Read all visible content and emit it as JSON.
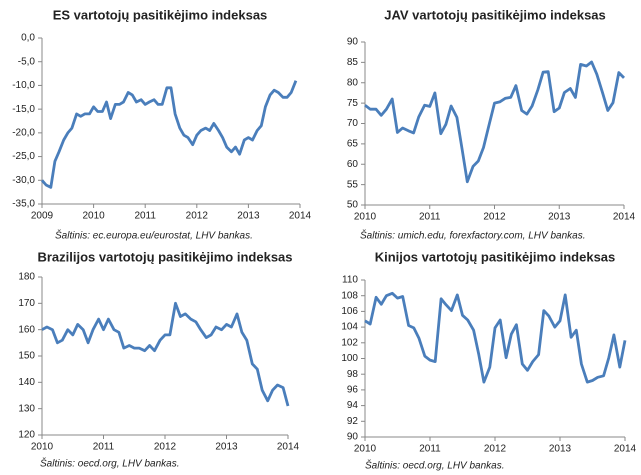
{
  "chart_data": [
    {
      "type": "line",
      "title": "ES vartotojų pasitikėjimo indeksas",
      "source": "Šaltinis: ec.europa.eu/eurostat, LHV bankas.",
      "color": "#4a7ebb",
      "xlim": [
        2009,
        2014
      ],
      "xticks": [
        2009,
        2010,
        2011,
        2012,
        2013,
        2014
      ],
      "ylim": [
        -35,
        0
      ],
      "yticks": [
        {
          "value": 0,
          "label": "0,0"
        },
        {
          "value": -5,
          "label": "-5,0"
        },
        {
          "value": -10,
          "label": "-10,0"
        },
        {
          "value": -15,
          "label": "-15,0"
        },
        {
          "value": -20,
          "label": "-20,0"
        },
        {
          "value": -25,
          "label": "-25,0"
        },
        {
          "value": -30,
          "label": "-30,0"
        },
        {
          "value": -35,
          "label": "-35,0"
        }
      ],
      "x": [
        2009,
        2009.08,
        2009.17,
        2009.25,
        2009.33,
        2009.42,
        2009.5,
        2009.58,
        2009.67,
        2009.75,
        2009.83,
        2009.92,
        2010,
        2010.08,
        2010.17,
        2010.25,
        2010.33,
        2010.42,
        2010.5,
        2010.58,
        2010.67,
        2010.75,
        2010.83,
        2010.92,
        2011,
        2011.08,
        2011.17,
        2011.25,
        2011.33,
        2011.42,
        2011.5,
        2011.58,
        2011.67,
        2011.75,
        2011.83,
        2011.92,
        2012,
        2012.08,
        2012.17,
        2012.25,
        2012.33,
        2012.42,
        2012.5,
        2012.58,
        2012.67,
        2012.75,
        2012.83,
        2012.92,
        2013,
        2013.08,
        2013.17,
        2013.25,
        2013.33,
        2013.42,
        2013.5,
        2013.58,
        2013.67,
        2013.75,
        2013.83,
        2013.92
      ],
      "values": [
        -30,
        -31,
        -31.5,
        -26,
        -24,
        -21.5,
        -20,
        -19,
        -16,
        -16.5,
        -16,
        -16,
        -14.5,
        -15.5,
        -15.5,
        -13.5,
        -17,
        -14,
        -14,
        -13.5,
        -11.5,
        -12,
        -13.5,
        -13,
        -14,
        -13.5,
        -13,
        -14,
        -14,
        -10.5,
        -10.5,
        -16,
        -19,
        -20.5,
        -21,
        -22.5,
        -20.5,
        -19.5,
        -19,
        -19.5,
        -18,
        -19.5,
        -21,
        -23,
        -24,
        -23,
        -24.5,
        -21.5,
        -21,
        -21.5,
        -19.5,
        -18.5,
        -14.5,
        -12,
        -11,
        -11.5,
        -12.5,
        -12.5,
        -11.5,
        -9
      ]
    },
    {
      "type": "line",
      "title": "JAV vartotojų pasitikėjimo indeksas",
      "source": "Šaltinis: umich.edu, forexfactory.com, LHV bankas.",
      "color": "#4a7ebb",
      "xlim": [
        2010,
        2014
      ],
      "xticks": [
        2010,
        2011,
        2012,
        2013,
        2014
      ],
      "ylim": [
        50,
        90
      ],
      "yticks": [
        50,
        55,
        60,
        65,
        70,
        75,
        80,
        85,
        90
      ],
      "x": [
        2010,
        2010.08,
        2010.17,
        2010.25,
        2010.33,
        2010.42,
        2010.5,
        2010.58,
        2010.67,
        2010.75,
        2010.83,
        2010.92,
        2011,
        2011.08,
        2011.17,
        2011.25,
        2011.33,
        2011.42,
        2011.5,
        2011.58,
        2011.67,
        2011.75,
        2011.83,
        2011.92,
        2012,
        2012.08,
        2012.17,
        2012.25,
        2012.33,
        2012.42,
        2012.5,
        2012.58,
        2012.67,
        2012.75,
        2012.83,
        2012.92,
        2013,
        2013.08,
        2013.17,
        2013.25,
        2013.33,
        2013.42,
        2013.5,
        2013.58,
        2013.67,
        2013.75,
        2013.83,
        2013.92,
        2014
      ],
      "values": [
        74.5,
        73.5,
        73.5,
        72,
        73.5,
        76,
        67.8,
        68.9,
        68.2,
        67.7,
        71.6,
        74.5,
        74.2,
        77.5,
        67.5,
        69.8,
        74.3,
        71.5,
        63.7,
        55.7,
        59.5,
        60.8,
        64.1,
        69.9,
        75,
        75.3,
        76.2,
        76.4,
        79.3,
        73.2,
        72.3,
        74.3,
        78.3,
        82.6,
        82.7,
        72.9,
        73.8,
        77.6,
        78.6,
        76.4,
        84.5,
        84.1,
        85.1,
        82.1,
        77.5,
        73.2,
        75.1,
        82.5,
        81.2
      ]
    },
    {
      "type": "line",
      "title": "Brazilijos vartotojų pasitikėjimo indeksas",
      "source": "Šaltinis: oecd.org, LHV bankas.",
      "color": "#4a7ebb",
      "xlim": [
        2010,
        2014
      ],
      "xticks": [
        2010,
        2011,
        2012,
        2013,
        2014
      ],
      "ylim": [
        120,
        180
      ],
      "yticks": [
        120,
        130,
        140,
        150,
        160,
        170,
        180
      ],
      "x": [
        2010,
        2010.08,
        2010.17,
        2010.25,
        2010.33,
        2010.42,
        2010.5,
        2010.58,
        2010.67,
        2010.75,
        2010.83,
        2010.92,
        2011,
        2011.08,
        2011.17,
        2011.25,
        2011.33,
        2011.42,
        2011.5,
        2011.58,
        2011.67,
        2011.75,
        2011.83,
        2011.92,
        2012,
        2012.08,
        2012.17,
        2012.25,
        2012.33,
        2012.42,
        2012.5,
        2012.58,
        2012.67,
        2012.75,
        2012.83,
        2012.92,
        2013,
        2013.08,
        2013.17,
        2013.25,
        2013.33,
        2013.42,
        2013.5,
        2013.58,
        2013.67,
        2013.75,
        2013.83,
        2013.92,
        2014
      ],
      "values": [
        160,
        161,
        160,
        155,
        156,
        160,
        158,
        162,
        160,
        155,
        160,
        164,
        160,
        164,
        160,
        159,
        153,
        154,
        153,
        153,
        152,
        154,
        152,
        156,
        158,
        158,
        170,
        165,
        166,
        164,
        163,
        160,
        157,
        158,
        161,
        160,
        162,
        161,
        166,
        159,
        156,
        147,
        145,
        137,
        133,
        137,
        139,
        138,
        131
      ]
    },
    {
      "type": "line",
      "title": "Kinijos vartotojų pasitikėjimo indeksas",
      "source": "Šaltinis: oecd.org, LHV bankas.",
      "color": "#4a7ebb",
      "xlim": [
        2010,
        2014
      ],
      "xticks": [
        2010,
        2011,
        2012,
        2013,
        2014
      ],
      "ylim": [
        90,
        110
      ],
      "yticks": [
        90,
        92,
        94,
        96,
        98,
        100,
        102,
        104,
        106,
        108,
        110
      ],
      "x": [
        2010,
        2010.08,
        2010.17,
        2010.25,
        2010.33,
        2010.42,
        2010.5,
        2010.58,
        2010.67,
        2010.75,
        2010.83,
        2010.92,
        2011,
        2011.08,
        2011.17,
        2011.25,
        2011.33,
        2011.42,
        2011.5,
        2011.58,
        2011.67,
        2011.75,
        2011.83,
        2011.92,
        2012,
        2012.08,
        2012.17,
        2012.25,
        2012.33,
        2012.42,
        2012.5,
        2012.58,
        2012.67,
        2012.75,
        2012.83,
        2012.92,
        2013,
        2013.08,
        2013.17,
        2013.25,
        2013.33,
        2013.42,
        2013.5,
        2013.58,
        2013.67,
        2013.75,
        2013.83,
        2013.92,
        2014
      ],
      "values": [
        104.8,
        104.4,
        107.8,
        106.9,
        108,
        108.3,
        107.7,
        107.9,
        104.2,
        103.9,
        102.6,
        100.3,
        99.8,
        99.6,
        107.6,
        106.8,
        106.1,
        108.1,
        105.5,
        104.9,
        103.6,
        100.5,
        97,
        98.9,
        103.9,
        104.9,
        100.1,
        103.1,
        104.3,
        99.3,
        98.5,
        99.6,
        100.5,
        106.1,
        105.4,
        104,
        104.8,
        108.1,
        102.7,
        103.6,
        99.3,
        97,
        97.2,
        97.6,
        97.8,
        100.1,
        103,
        98.9,
        102.3
      ]
    }
  ]
}
